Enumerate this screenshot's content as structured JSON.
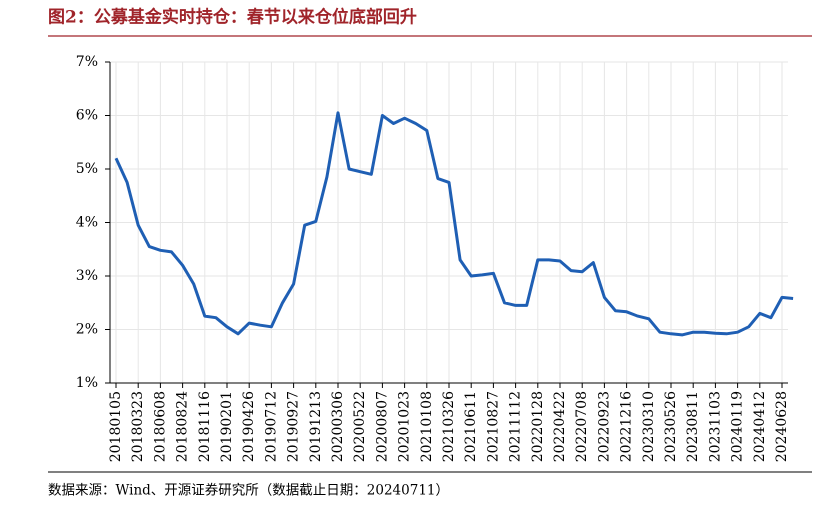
{
  "chart_data": {
    "type": "line",
    "title": "图2：公募基金实时持仓：春节以来仓位底部回升",
    "source": "数据来源：Wind、开源证券研究所（数据截止日期：20240711）",
    "categories": [
      "20180105",
      null,
      "20180323",
      null,
      "20180608",
      null,
      "20180824",
      null,
      "20181116",
      null,
      "20190201",
      null,
      "20190426",
      null,
      "20190712",
      null,
      "20190927",
      null,
      "20191213",
      null,
      "20200306",
      null,
      "20200522",
      null,
      "20200807",
      null,
      "20201023",
      null,
      "20210108",
      null,
      "20210326",
      null,
      "20210611",
      null,
      "20210827",
      null,
      "20211112",
      null,
      "20220128",
      null,
      "20220422",
      null,
      "20220708",
      null,
      "20220923",
      null,
      "20221216",
      null,
      "20230310",
      null,
      "20230526",
      null,
      "20230811",
      null,
      "20231103",
      null,
      "20240119",
      null,
      "20240412",
      null,
      "20240628",
      null
    ],
    "values": [
      5.2,
      4.75,
      3.95,
      3.55,
      3.48,
      3.45,
      3.2,
      2.85,
      2.25,
      2.22,
      2.05,
      1.92,
      2.12,
      2.08,
      2.05,
      2.5,
      2.85,
      3.95,
      4.02,
      4.85,
      6.05,
      5.0,
      4.95,
      4.9,
      6.0,
      5.85,
      5.95,
      5.85,
      5.72,
      4.82,
      4.75,
      3.3,
      3.0,
      3.02,
      3.05,
      2.5,
      2.45,
      2.45,
      3.3,
      3.3,
      3.28,
      3.1,
      3.08,
      3.25,
      2.6,
      2.35,
      2.33,
      2.25,
      2.2,
      1.95,
      1.92,
      1.9,
      1.95,
      1.95,
      1.93,
      1.92,
      1.95,
      2.05,
      2.3,
      2.22,
      2.6,
      2.58
    ],
    "color": "#1f5fb4",
    "ylim": [
      1,
      7
    ],
    "yticks": [
      {
        "value": 1,
        "label": "1%"
      },
      {
        "value": 2,
        "label": "2%"
      },
      {
        "value": 3,
        "label": "3%"
      },
      {
        "value": 4,
        "label": "4%"
      },
      {
        "value": 5,
        "label": "5%"
      },
      {
        "value": 6,
        "label": "6%"
      },
      {
        "value": 7,
        "label": "7%"
      }
    ],
    "grid": true
  }
}
